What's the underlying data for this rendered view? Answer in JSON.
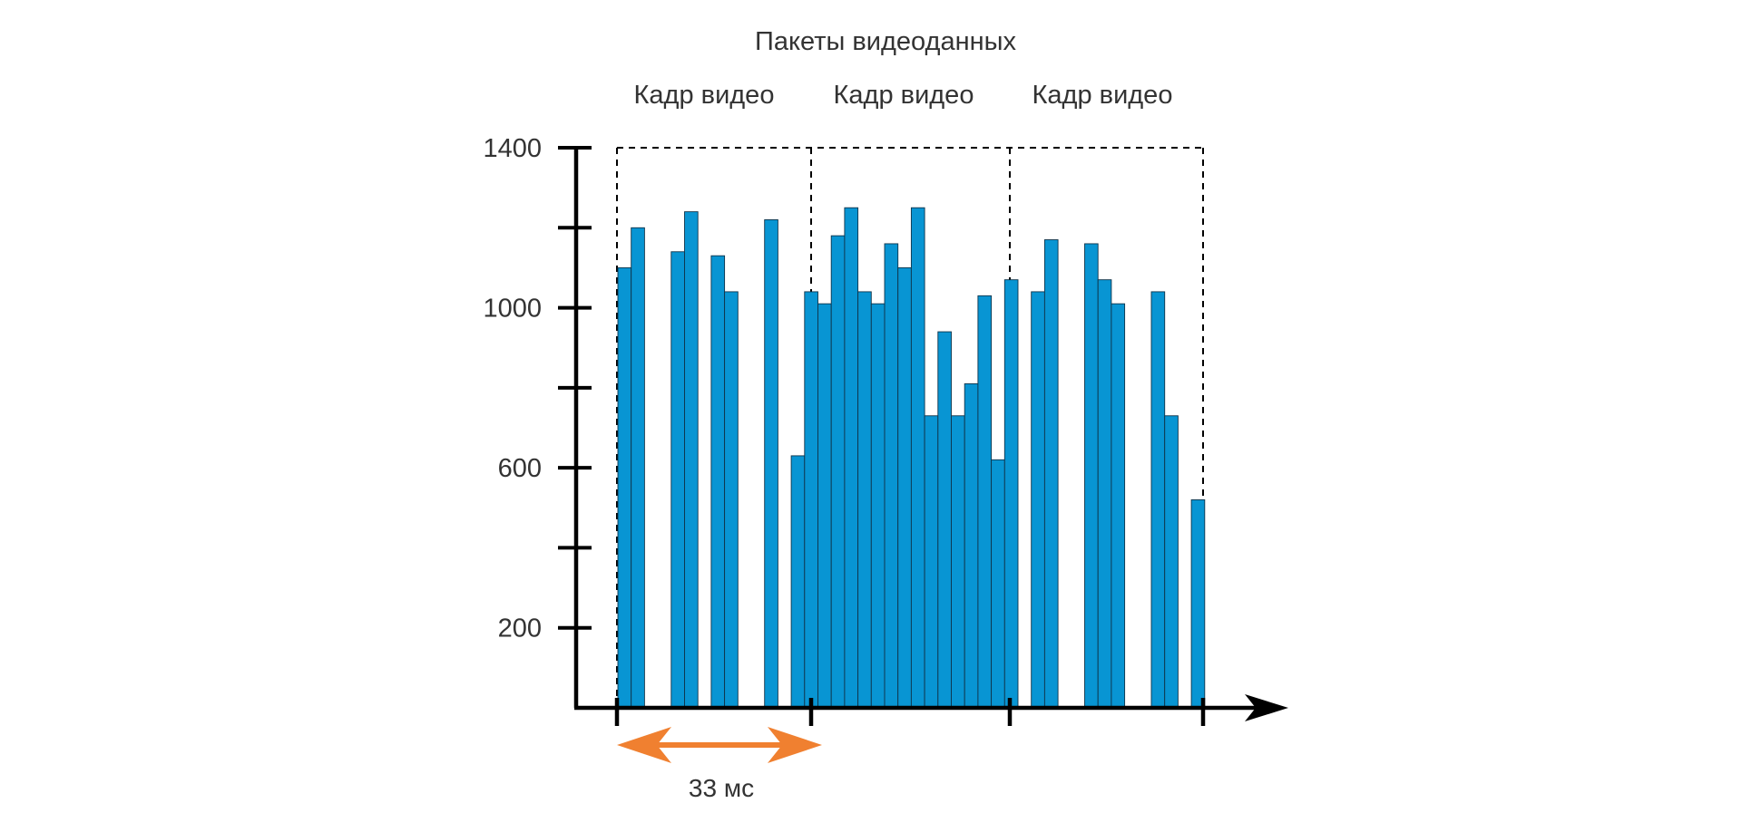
{
  "chart_data": {
    "type": "bar",
    "title": "Пакеты видеоданных",
    "frame_labels": [
      "Кадр видео",
      "Кадр видео",
      "Кадр видео"
    ],
    "interval_label": "33 мс",
    "yticks": [
      200,
      600,
      1000,
      1400
    ],
    "ylim": [
      0,
      1400
    ],
    "grid": false,
    "bar_color": "#0895d3",
    "interval_color": "#f08030",
    "axis_color": "#000000",
    "series": [
      {
        "values": [
          1100,
          1200,
          0,
          0,
          1140,
          1240,
          0,
          1130,
          1040,
          0,
          0,
          1220,
          0,
          630,
          1040,
          1010,
          1180,
          1250,
          1040,
          1010,
          1160,
          1100,
          1250,
          730,
          940,
          730,
          810,
          1030,
          620,
          1070,
          0,
          1040,
          1170,
          0,
          0,
          1160,
          1070,
          1010,
          0,
          0,
          1040,
          730,
          0,
          520
        ]
      }
    ]
  }
}
